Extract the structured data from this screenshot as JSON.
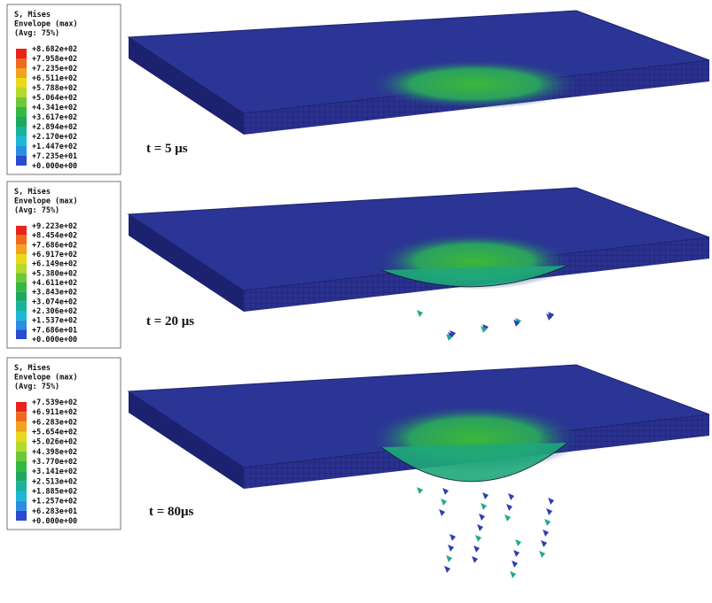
{
  "panels": [
    {
      "legend": {
        "title": [
          "S, Mises",
          "Envelope (max)",
          "(Avg: 75%)"
        ],
        "values": [
          "+8.682e+02",
          "+7.958e+02",
          "+7.235e+02",
          "+6.511e+02",
          "+5.788e+02",
          "+5.064e+02",
          "+4.341e+02",
          "+3.617e+02",
          "+2.894e+02",
          "+2.170e+02",
          "+1.447e+02",
          "+7.235e+01",
          "+0.000e+00"
        ]
      },
      "time": "t = 5 μs"
    },
    {
      "legend": {
        "title": [
          "S, Mises",
          "Envelope (max)",
          "(Avg: 75%)"
        ],
        "values": [
          "+9.223e+02",
          "+8.454e+02",
          "+7.686e+02",
          "+6.917e+02",
          "+6.149e+02",
          "+5.380e+02",
          "+4.611e+02",
          "+3.843e+02",
          "+3.074e+02",
          "+2.306e+02",
          "+1.537e+02",
          "+7.686e+01",
          "+0.000e+00"
        ]
      },
      "time": "t = 20 μs"
    },
    {
      "legend": {
        "title": [
          "S, Mises",
          "Envelope (max)",
          "(Avg: 75%)"
        ],
        "values": [
          "+7.539e+02",
          "+6.911e+02",
          "+6.283e+02",
          "+5.654e+02",
          "+5.026e+02",
          "+4.398e+02",
          "+3.770e+02",
          "+3.141e+02",
          "+2.513e+02",
          "+1.885e+02",
          "+1.257e+02",
          "+6.283e+01",
          "+0.000e+00"
        ]
      },
      "time": "t = 80μs"
    }
  ]
}
